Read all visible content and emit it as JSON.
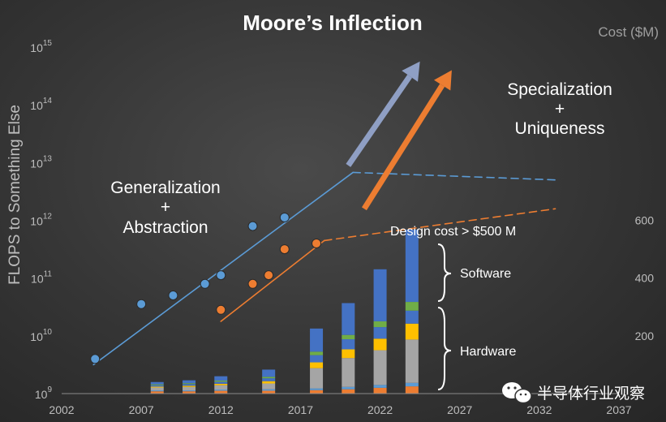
{
  "chart_data": {
    "type": "scatter",
    "title": "Moore’s Inflection",
    "ylabel": "FLOPS to Something Else",
    "secondary_ylabel": "Cost ($M)",
    "x_range": [
      2002,
      2037
    ],
    "x_ticks": [
      "2002",
      "2007",
      "2012",
      "2017",
      "2022",
      "2027",
      "2032",
      "2037"
    ],
    "y_log_exponents": [
      9,
      10,
      11,
      12,
      13,
      14,
      15
    ],
    "secondary_ticks": [
      "200",
      "400",
      "600"
    ],
    "secondary_range": [
      0,
      800
    ],
    "series": [
      {
        "name": "generalization",
        "color": "#5b9bd5",
        "points": [
          [
            2004.1,
            9.6
          ],
          [
            2007.0,
            10.55
          ],
          [
            2009.0,
            10.7
          ],
          [
            2011.0,
            10.9
          ],
          [
            2012.0,
            11.05
          ],
          [
            2014.0,
            11.9
          ],
          [
            2016.0,
            12.05
          ]
        ]
      },
      {
        "name": "specialization",
        "color": "#ed7d31",
        "points": [
          [
            2012.0,
            10.45
          ],
          [
            2014.0,
            10.9
          ],
          [
            2015.0,
            11.05
          ],
          [
            2016.0,
            11.5
          ],
          [
            2018.0,
            11.6
          ]
        ]
      }
    ],
    "trend_lines": {
      "blue_solid": [
        [
          2004.0,
          9.5
        ],
        [
          2020.3,
          12.83
        ]
      ],
      "blue_dashed": [
        [
          2020.3,
          12.83
        ],
        [
          2033.0,
          12.7
        ]
      ],
      "orange_solid": [
        [
          2012.0,
          10.25
        ],
        [
          2018.5,
          11.65
        ]
      ],
      "orange_dashed": [
        [
          2018.5,
          11.65
        ],
        [
          2033.0,
          12.2
        ]
      ],
      "blue_arrow": [
        [
          2020.0,
          12.95
        ],
        [
          2024.5,
          14.75
        ]
      ],
      "orange_arrow": [
        [
          2021.0,
          12.2
        ],
        [
          2026.5,
          14.6
        ]
      ]
    },
    "design_cost": {
      "label": "Design cost > $500 M",
      "segment_colors": [
        "#ed7d31",
        "#5b9bd5",
        "#a5a5a5",
        "#ffc000",
        "#4472c4",
        "#70ad47",
        "#4472c4"
      ],
      "bars": [
        {
          "x": 2008,
          "segments": [
            8,
            3,
            10,
            3,
            5,
            3,
            8
          ]
        },
        {
          "x": 2010,
          "segments": [
            8,
            3,
            12,
            4,
            6,
            3,
            10
          ]
        },
        {
          "x": 2012,
          "segments": [
            10,
            4,
            15,
            5,
            7,
            4,
            15
          ]
        },
        {
          "x": 2015,
          "segments": [
            10,
            5,
            20,
            8,
            10,
            5,
            25
          ]
        },
        {
          "x": 2018,
          "segments": [
            12,
            6,
            70,
            20,
            25,
            12,
            80
          ]
        },
        {
          "x": 2020,
          "segments": [
            15,
            8,
            100,
            30,
            35,
            15,
            110
          ]
        },
        {
          "x": 2022,
          "segments": [
            20,
            10,
            120,
            40,
            40,
            20,
            180
          ]
        },
        {
          "x": 2024,
          "segments": [
            25,
            12,
            150,
            55,
            45,
            30,
            250
          ]
        }
      ],
      "braces": {
        "software": "Software",
        "hardware": "Hardware"
      }
    },
    "annotations": {
      "generalization_line1": "Generalization",
      "generalization_line2": "+",
      "generalization_line3": "Abstraction",
      "specialization_line1": "Specialization",
      "specialization_line2": "+",
      "specialization_line3": "Uniqueness"
    },
    "watermark": "半导体行业观察"
  }
}
